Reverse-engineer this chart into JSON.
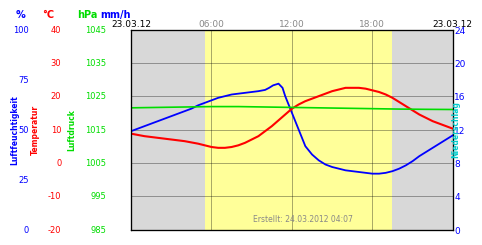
{
  "title_left": "23.03.12",
  "title_right": "23.03.12",
  "created": "Erstellt: 24.03.2012 04:07",
  "x_ticks_top": [
    6,
    12,
    18
  ],
  "x_tick_labels_top": [
    "06:00",
    "12:00",
    "18:00"
  ],
  "x_range": [
    0,
    24
  ],
  "y_range": [
    0,
    24
  ],
  "ylabel_blue": "Luftfeuchtigkeit",
  "ylabel_red": "Temperatur",
  "ylabel_green": "Luftdruck",
  "ylabel_cyan": "Niederschlag",
  "label_percent": "%",
  "label_celsius": "°C",
  "label_hpa": "hPa",
  "label_mmh": "mm/h",
  "bg_color": "#d8d8d8",
  "yellow_shade": "#ffff99",
  "yellow_start": 5.5,
  "yellow_end": 19.5,
  "blue_color": "#0000ff",
  "red_color": "#ff0000",
  "green_color": "#00dd00",
  "grid_color": "#000000",
  "blue_line_x": [
    0,
    0.5,
    1,
    1.5,
    2,
    2.5,
    3,
    3.5,
    4,
    4.5,
    5,
    5.5,
    6,
    6.5,
    7,
    7.5,
    8,
    8.5,
    9,
    9.5,
    10,
    10.3,
    10.6,
    11,
    11.3,
    11.5,
    12,
    12.5,
    13,
    13.5,
    14,
    14.5,
    15,
    15.5,
    16,
    16.5,
    17,
    17.5,
    18,
    18.5,
    19,
    19.5,
    20,
    20.5,
    21,
    21.5,
    22,
    22.5,
    23,
    23.5,
    24
  ],
  "blue_line_y": [
    11.8,
    12.1,
    12.4,
    12.7,
    13.0,
    13.3,
    13.6,
    13.9,
    14.2,
    14.5,
    14.9,
    15.2,
    15.5,
    15.8,
    16.0,
    16.2,
    16.3,
    16.4,
    16.5,
    16.6,
    16.75,
    17.0,
    17.3,
    17.5,
    17.0,
    16.0,
    14.0,
    12.0,
    10.0,
    9.0,
    8.3,
    7.8,
    7.5,
    7.3,
    7.1,
    7.0,
    6.9,
    6.8,
    6.7,
    6.7,
    6.8,
    7.0,
    7.3,
    7.7,
    8.2,
    8.8,
    9.3,
    9.8,
    10.3,
    10.8,
    11.3
  ],
  "red_line_x": [
    0,
    1,
    2,
    3,
    4,
    5,
    5.5,
    6,
    6.5,
    7,
    7.5,
    8,
    8.5,
    9,
    9.5,
    10,
    10.5,
    11,
    11.5,
    12,
    12.5,
    13,
    13.5,
    14,
    14.5,
    15,
    15.5,
    16,
    16.5,
    17,
    17.5,
    18,
    18.5,
    19,
    19.5,
    20,
    20.5,
    21,
    21.5,
    22,
    22.5,
    23,
    23.5,
    24
  ],
  "red_line_y": [
    11.5,
    11.2,
    11.0,
    10.8,
    10.6,
    10.3,
    10.1,
    9.9,
    9.8,
    9.8,
    9.9,
    10.1,
    10.4,
    10.8,
    11.2,
    11.8,
    12.4,
    13.1,
    13.8,
    14.5,
    15.0,
    15.4,
    15.7,
    16.0,
    16.3,
    16.6,
    16.8,
    17.0,
    17.0,
    17.0,
    16.9,
    16.7,
    16.5,
    16.2,
    15.8,
    15.3,
    14.8,
    14.3,
    13.8,
    13.4,
    13.0,
    12.7,
    12.4,
    12.1
  ],
  "green_line_x": [
    0,
    2,
    4,
    6,
    8,
    10,
    12,
    14,
    16,
    18,
    20,
    22,
    24
  ],
  "green_line_y": [
    14.6,
    14.65,
    14.7,
    14.75,
    14.75,
    14.7,
    14.65,
    14.6,
    14.55,
    14.5,
    14.45,
    14.42,
    14.4
  ],
  "ytick_positions": [
    0,
    4,
    8,
    12,
    16,
    20,
    24
  ],
  "ytick_labels_mmh": [
    "0",
    "4",
    "8",
    "12",
    "16",
    "20",
    "24"
  ],
  "ytick_labels_blue_pct": [
    "0",
    "25",
    "50",
    "75",
    "100"
  ],
  "ytick_blue_pct_pos": [
    0,
    6,
    12,
    18,
    24
  ],
  "ytick_labels_red_c": [
    "-20",
    "-10",
    "0",
    "10",
    "20",
    "30",
    "40"
  ],
  "ytick_red_c_pos": [
    0,
    4,
    8,
    12,
    16,
    20,
    24
  ],
  "ytick_labels_green_hpa": [
    "985",
    "995",
    "1005",
    "1015",
    "1025",
    "1035",
    "1045"
  ],
  "ytick_green_hpa_pos": [
    0,
    4,
    8,
    12,
    16,
    20,
    24
  ],
  "fig_bg": "#ffffff",
  "left_panel_bg": "#ffffff"
}
